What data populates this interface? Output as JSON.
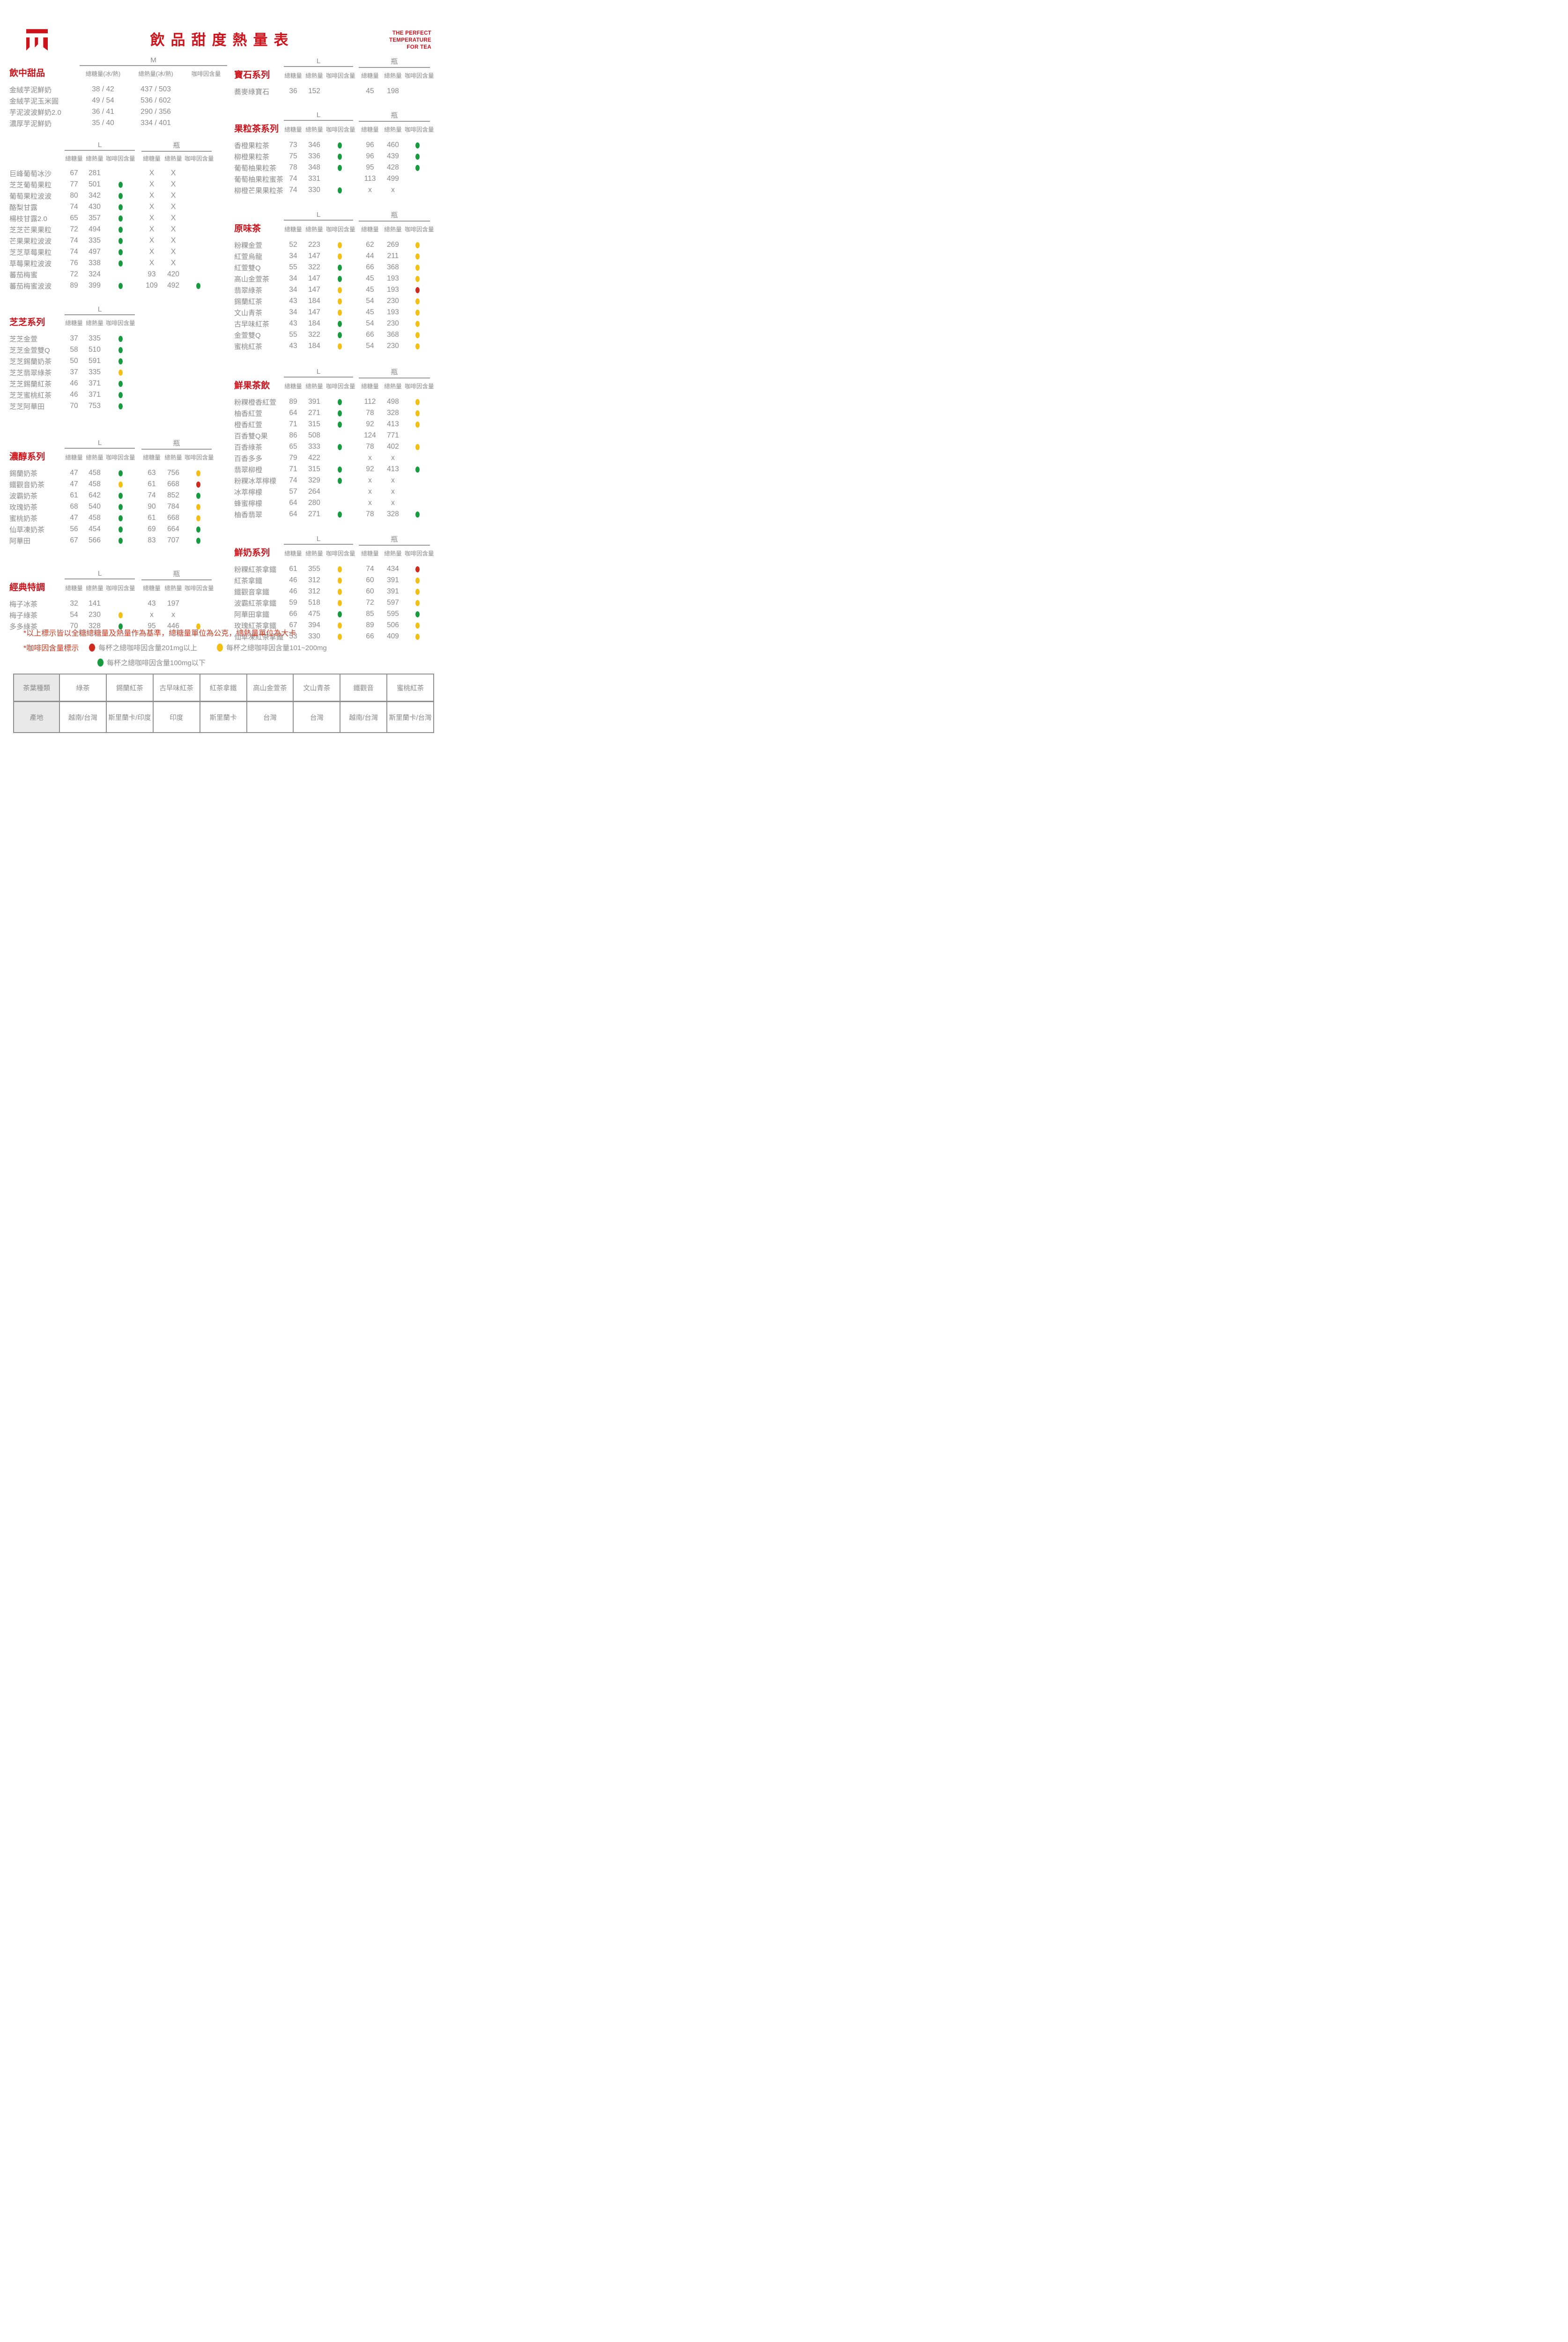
{
  "header": {
    "title": "飲品甜度熱量表",
    "tagline_lines": [
      "THE PERFECT",
      "TEMPERATURE",
      "FOR TEA"
    ],
    "logo": "brand-mark"
  },
  "labels": {
    "size_m": "M",
    "size_l": "L",
    "size_bottle": "瓶",
    "sugar": "總糖量",
    "calorie": "總熱量",
    "caffeine": "咖啡因含量",
    "sugar_ih": "總糖量(冰/熱)",
    "calorie_ih": "總熱量(冰/熱)"
  },
  "sections_left": [
    {
      "title": "飲中甜品",
      "mode": "m",
      "rows": [
        {
          "name": "金絨芋泥鮮奶",
          "s": "38 / 42",
          "c": "437 / 503",
          "d": ""
        },
        {
          "name": "金絨芋泥玉米圓",
          "s": "49 / 54",
          "c": "536 / 602",
          "d": ""
        },
        {
          "name": "芋泥波波鮮奶2.0",
          "s": "36 / 41",
          "c": "290 / 356",
          "d": ""
        },
        {
          "name": "濃厚芋泥鮮奶",
          "s": "35 / 40",
          "c": "334 / 401",
          "d": ""
        }
      ]
    },
    {
      "title": "",
      "mode": "lb",
      "rows": [
        {
          "name": "巨峰葡萄冰沙",
          "ls": "67",
          "lc": "281",
          "ld": "",
          "bs": "X",
          "bc": "X",
          "bd": ""
        },
        {
          "name": "芝芝葡萄果粒",
          "ls": "77",
          "lc": "501",
          "ld": "g",
          "bs": "X",
          "bc": "X",
          "bd": ""
        },
        {
          "name": "葡萄果粒波波",
          "ls": "80",
          "lc": "342",
          "ld": "g",
          "bs": "X",
          "bc": "X",
          "bd": ""
        },
        {
          "name": "酪梨甘露",
          "ls": "74",
          "lc": "430",
          "ld": "g",
          "bs": "X",
          "bc": "X",
          "bd": ""
        },
        {
          "name": "楊枝甘露2.0",
          "ls": "65",
          "lc": "357",
          "ld": "g",
          "bs": "X",
          "bc": "X",
          "bd": ""
        },
        {
          "name": "芝芝芒果果粒",
          "ls": "72",
          "lc": "494",
          "ld": "g",
          "bs": "X",
          "bc": "X",
          "bd": ""
        },
        {
          "name": "芒果果粒波波",
          "ls": "74",
          "lc": "335",
          "ld": "g",
          "bs": "X",
          "bc": "X",
          "bd": ""
        },
        {
          "name": "芝芝草莓果粒",
          "ls": "74",
          "lc": "497",
          "ld": "g",
          "bs": "X",
          "bc": "X",
          "bd": ""
        },
        {
          "name": "草莓果粒波波",
          "ls": "76",
          "lc": "338",
          "ld": "g",
          "bs": "X",
          "bc": "X",
          "bd": ""
        },
        {
          "name": "蕃茄梅蜜",
          "ls": "72",
          "lc": "324",
          "ld": "",
          "bs": "93",
          "bc": "420",
          "bd": ""
        },
        {
          "name": "蕃茄梅蜜波波",
          "ls": "89",
          "lc": "399",
          "ld": "g",
          "bs": "109",
          "bc": "492",
          "bd": "g"
        }
      ]
    },
    {
      "title": "芝芝系列",
      "mode": "l",
      "rows": [
        {
          "name": "芝芝金萱",
          "ls": "37",
          "lc": "335",
          "ld": "g"
        },
        {
          "name": "芝芝金萱雙Q",
          "ls": "58",
          "lc": "510",
          "ld": "g"
        },
        {
          "name": "芝芝錫蘭奶茶",
          "ls": "50",
          "lc": "591",
          "ld": "g"
        },
        {
          "name": "芝芝翡翠綠茶",
          "ls": "37",
          "lc": "335",
          "ld": "y"
        },
        {
          "name": "芝芝錫蘭紅茶",
          "ls": "46",
          "lc": "371",
          "ld": "g"
        },
        {
          "name": "芝芝蜜桃紅茶",
          "ls": "46",
          "lc": "371",
          "ld": "g"
        },
        {
          "name": "芝芝阿華田",
          "ls": "70",
          "lc": "753",
          "ld": "g"
        }
      ]
    },
    {
      "title": "濃醇系列",
      "mode": "lb",
      "rows": [
        {
          "name": "錫蘭奶茶",
          "ls": "47",
          "lc": "458",
          "ld": "g",
          "bs": "63",
          "bc": "756",
          "bd": "y"
        },
        {
          "name": "鐵觀音奶茶",
          "ls": "47",
          "lc": "458",
          "ld": "y",
          "bs": "61",
          "bc": "668",
          "bd": "r"
        },
        {
          "name": "波霸奶茶",
          "ls": "61",
          "lc": "642",
          "ld": "g",
          "bs": "74",
          "bc": "852",
          "bd": "g"
        },
        {
          "name": "玫瑰奶茶",
          "ls": "68",
          "lc": "540",
          "ld": "g",
          "bs": "90",
          "bc": "784",
          "bd": "y"
        },
        {
          "name": "蜜桃奶茶",
          "ls": "47",
          "lc": "458",
          "ld": "g",
          "bs": "61",
          "bc": "668",
          "bd": "y"
        },
        {
          "name": "仙草凍奶茶",
          "ls": "56",
          "lc": "454",
          "ld": "g",
          "bs": "69",
          "bc": "664",
          "bd": "g"
        },
        {
          "name": "阿華田",
          "ls": "67",
          "lc": "566",
          "ld": "g",
          "bs": "83",
          "bc": "707",
          "bd": "g"
        }
      ]
    },
    {
      "title": "經典特調",
      "mode": "lb",
      "rows": [
        {
          "name": "梅子冰茶",
          "ls": "32",
          "lc": "141",
          "ld": "",
          "bs": "43",
          "bc": "197",
          "bd": ""
        },
        {
          "name": "梅子綠茶",
          "ls": "54",
          "lc": "230",
          "ld": "y",
          "bs": "x",
          "bc": "x",
          "bd": ""
        },
        {
          "name": "多多綠茶",
          "ls": "70",
          "lc": "328",
          "ld": "g",
          "bs": "95",
          "bc": "446",
          "bd": "y"
        }
      ]
    }
  ],
  "sections_right": [
    {
      "title": "寶石系列",
      "mode": "lb",
      "rows": [
        {
          "name": "蕎麥綠寶石",
          "ls": "36",
          "lc": "152",
          "ld": "",
          "bs": "45",
          "bc": "198",
          "bd": ""
        }
      ]
    },
    {
      "title": "果粒茶系列",
      "mode": "lb",
      "rows": [
        {
          "name": "香橙果粒茶",
          "ls": "73",
          "lc": "346",
          "ld": "g",
          "bs": "96",
          "bc": "460",
          "bd": "g"
        },
        {
          "name": "柳橙果粒茶",
          "ls": "75",
          "lc": "336",
          "ld": "g",
          "bs": "96",
          "bc": "439",
          "bd": "g"
        },
        {
          "name": "葡萄柚果粒茶",
          "ls": "78",
          "lc": "348",
          "ld": "g",
          "bs": "95",
          "bc": "428",
          "bd": "g"
        },
        {
          "name": "葡萄柚果粒蜜茶",
          "ls": "74",
          "lc": "331",
          "ld": "",
          "bs": "113",
          "bc": "499",
          "bd": ""
        },
        {
          "name": "柳橙芒果果粒茶",
          "ls": "74",
          "lc": "330",
          "ld": "g",
          "bs": "x",
          "bc": "x",
          "bd": ""
        }
      ]
    },
    {
      "title": "原味茶",
      "mode": "lb",
      "rows": [
        {
          "name": "粉粿金萱",
          "ls": "52",
          "lc": "223",
          "ld": "y",
          "bs": "62",
          "bc": "269",
          "bd": "y"
        },
        {
          "name": "紅萱烏龍",
          "ls": "34",
          "lc": "147",
          "ld": "y",
          "bs": "44",
          "bc": "211",
          "bd": "y"
        },
        {
          "name": "紅萱雙Q",
          "ls": "55",
          "lc": "322",
          "ld": "g",
          "bs": "66",
          "bc": "368",
          "bd": "y"
        },
        {
          "name": "高山金萱茶",
          "ls": "34",
          "lc": "147",
          "ld": "g",
          "bs": "45",
          "bc": "193",
          "bd": "y"
        },
        {
          "name": "翡翠綠茶",
          "ls": "34",
          "lc": "147",
          "ld": "y",
          "bs": "45",
          "bc": "193",
          "bd": "r"
        },
        {
          "name": "錫蘭紅茶",
          "ls": "43",
          "lc": "184",
          "ld": "y",
          "bs": "54",
          "bc": "230",
          "bd": "y"
        },
        {
          "name": "文山青茶",
          "ls": "34",
          "lc": "147",
          "ld": "y",
          "bs": "45",
          "bc": "193",
          "bd": "y"
        },
        {
          "name": "古早味紅茶",
          "ls": "43",
          "lc": "184",
          "ld": "g",
          "bs": "54",
          "bc": "230",
          "bd": "y"
        },
        {
          "name": "金萱雙Q",
          "ls": "55",
          "lc": "322",
          "ld": "g",
          "bs": "66",
          "bc": "368",
          "bd": "y"
        },
        {
          "name": "蜜桃紅茶",
          "ls": "43",
          "lc": "184",
          "ld": "y",
          "bs": "54",
          "bc": "230",
          "bd": "y"
        }
      ]
    },
    {
      "title": "鮮果茶飲",
      "mode": "lb",
      "rows": [
        {
          "name": "粉粿橙香紅萱",
          "ls": "89",
          "lc": "391",
          "ld": "g",
          "bs": "112",
          "bc": "498",
          "bd": "y"
        },
        {
          "name": "柚香紅萱",
          "ls": "64",
          "lc": "271",
          "ld": "g",
          "bs": "78",
          "bc": "328",
          "bd": "y"
        },
        {
          "name": "橙香紅萱",
          "ls": "71",
          "lc": "315",
          "ld": "g",
          "bs": "92",
          "bc": "413",
          "bd": "y"
        },
        {
          "name": "百香雙Q果",
          "ls": "86",
          "lc": "508",
          "ld": "",
          "bs": "124",
          "bc": "771",
          "bd": ""
        },
        {
          "name": "百香綠茶",
          "ls": "65",
          "lc": "333",
          "ld": "g",
          "bs": "78",
          "bc": "402",
          "bd": "y"
        },
        {
          "name": "百香多多",
          "ls": "79",
          "lc": "422",
          "ld": "",
          "bs": "x",
          "bc": "x",
          "bd": ""
        },
        {
          "name": "翡翠柳橙",
          "ls": "71",
          "lc": "315",
          "ld": "g",
          "bs": "92",
          "bc": "413",
          "bd": "g"
        },
        {
          "name": "粉粿冰萃檸檬",
          "ls": "74",
          "lc": "329",
          "ld": "g",
          "bs": "x",
          "bc": "x",
          "bd": ""
        },
        {
          "name": "冰萃檸檬",
          "ls": "57",
          "lc": "264",
          "ld": "",
          "bs": "x",
          "bc": "x",
          "bd": ""
        },
        {
          "name": "蜂蜜檸檬",
          "ls": "64",
          "lc": "280",
          "ld": "",
          "bs": "x",
          "bc": "x",
          "bd": ""
        },
        {
          "name": "柚香翡翠",
          "ls": "64",
          "lc": "271",
          "ld": "g",
          "bs": "78",
          "bc": "328",
          "bd": "g"
        }
      ]
    },
    {
      "title": "鮮奶系列",
      "mode": "lb",
      "rows": [
        {
          "name": "粉粿紅茶拿鐵",
          "ls": "61",
          "lc": "355",
          "ld": "y",
          "bs": "74",
          "bc": "434",
          "bd": "r"
        },
        {
          "name": "紅茶拿鐵",
          "ls": "46",
          "lc": "312",
          "ld": "y",
          "bs": "60",
          "bc": "391",
          "bd": "y"
        },
        {
          "name": "鐵觀音拿鐵",
          "ls": "46",
          "lc": "312",
          "ld": "y",
          "bs": "60",
          "bc": "391",
          "bd": "y"
        },
        {
          "name": "波霸紅茶拿鐵",
          "ls": "59",
          "lc": "518",
          "ld": "y",
          "bs": "72",
          "bc": "597",
          "bd": "y"
        },
        {
          "name": "阿華田拿鐵",
          "ls": "66",
          "lc": "475",
          "ld": "g",
          "bs": "85",
          "bc": "595",
          "bd": "g"
        },
        {
          "name": "玫瑰紅茶拿鐵",
          "ls": "67",
          "lc": "394",
          "ld": "y",
          "bs": "89",
          "bc": "506",
          "bd": "y"
        },
        {
          "name": "仙草凍紅茶拿鐵",
          "ls": "53",
          "lc": "330",
          "ld": "y",
          "bs": "66",
          "bc": "409",
          "bd": "y"
        }
      ]
    }
  ],
  "footnotes": {
    "base_note": "*以上標示皆以全糖總糖量及熱量作為基準，總糖量單位為公克，總熱量單位為大卡",
    "caffeine_note_label": "*咖啡因含量標示",
    "legend": [
      {
        "color": "red",
        "text": "每杯之總咖啡因含量201mg以上"
      },
      {
        "color": "yellow",
        "text": "每杯之總咖啡因含量101~200mg"
      },
      {
        "color": "green",
        "text": "每杯之總咖啡因含量100mg以下"
      }
    ]
  },
  "tea_table": {
    "type_row_label": "茶葉種類",
    "origin_row_label": "產地",
    "types": [
      "綠茶",
      "錫蘭紅茶",
      "古早味紅茶",
      "紅茶拿鐵",
      "高山金萱茶",
      "文山青茶",
      "鐵觀音",
      "蜜桃紅茶"
    ],
    "origins": [
      "越南/台灣",
      "斯里蘭卡/印度",
      "印度",
      "斯里蘭卡",
      "台灣",
      "台灣",
      "越南/台灣",
      "斯里蘭卡/台灣"
    ]
  },
  "colors": {
    "brand_red": "#d0121b",
    "note_red": "#cf3a22",
    "text_grey": "#8a8a8a",
    "dot_green": "#169b3e",
    "dot_yellow": "#f3c011",
    "dot_red": "#cf2a1b"
  }
}
